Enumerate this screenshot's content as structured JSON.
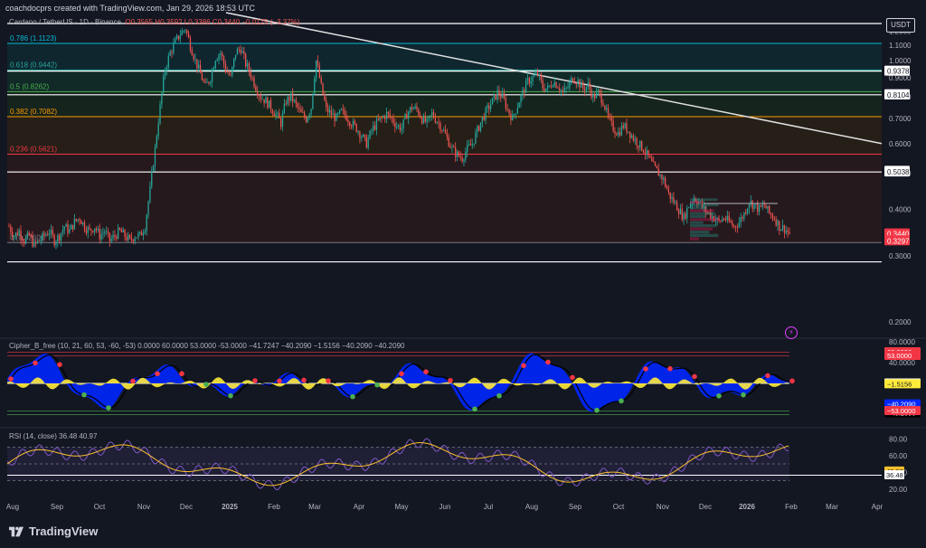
{
  "header": {
    "created_by": "coachdocprs created with TradingView.com, Jan 29, 2026 18:53 UTC"
  },
  "symbol": {
    "name": "Cardano / TetherUS · 1D · Binance",
    "ohlc": "O0.3565 H0.3592 L0.3386 C0.3440 −0.0125 (−3.37%)"
  },
  "currency_button": "USDT",
  "brand": "TradingView",
  "colors": {
    "bg": "#131722",
    "up": "#26a69a",
    "down": "#ef5350",
    "fib_0786": "#00bcd4",
    "fib_0618": "#26a69a",
    "fib_05": "#4caf50",
    "fib_0382": "#ff9800",
    "fib_0236": "#f23645",
    "fib_0": "#787b86",
    "white_line": "#ffffff",
    "cipher_blue": "#0026ff",
    "cipher_yellow": "#ffeb3b",
    "rsi_line": "#7e57c2",
    "rsi_ma": "#fbc02d"
  },
  "chart_data": [
    {
      "type": "candlestick",
      "title": "Cardano / TetherUS · 1D · Binance",
      "log_scale": true,
      "ylim": [
        0.185,
        1.3
      ],
      "y_ticks": [
        1.2,
        1.1,
        1.0,
        0.9,
        0.8,
        0.7,
        0.6,
        0.5,
        0.4,
        0.3,
        0.2
      ],
      "y_tick_labels": [
        "1.2000",
        "1.1000",
        "1.0000",
        "0.9000",
        "0.8000",
        "0.7000",
        "0.6000",
        "0.5000",
        "0.4000",
        "0.3000",
        "0.2000"
      ],
      "x_ticks": [
        "Aug",
        "Sep",
        "Oct",
        "Nov",
        "Dec",
        "2025",
        "Feb",
        "Mar",
        "Apr",
        "May",
        "Jun",
        "Jul",
        "Aug",
        "Sep",
        "Oct",
        "Nov",
        "Dec",
        "2026",
        "Feb",
        "Mar",
        "Apr"
      ],
      "approx_close_path": [
        [
          0.36,
          0.34,
          0.35,
          0.33,
          0.34,
          0.32,
          0.33,
          0.34,
          0.35,
          0.33,
          0.34,
          0.36,
          0.35,
          0.37,
          0.38,
          0.36,
          0.35,
          0.36,
          0.34,
          0.35,
          0.33,
          0.34,
          0.35,
          0.34,
          0.33,
          0.34
        ],
        [
          0.34,
          0.36,
          0.45,
          0.58,
          0.75,
          0.95,
          1.05,
          1.12,
          1.18,
          1.22,
          1.1,
          1.0,
          0.92,
          0.85,
          0.9,
          1.02,
          1.05,
          0.95,
          0.9,
          1.05,
          1.08,
          0.98,
          0.92,
          0.85,
          0.8,
          0.78
        ],
        [
          0.75,
          0.72,
          0.68,
          0.78,
          0.8,
          0.76,
          0.72,
          0.7,
          0.75,
          1.0,
          0.85,
          0.74,
          0.72,
          0.7,
          0.73,
          0.71,
          0.68,
          0.66,
          0.63,
          0.6,
          0.65,
          0.68,
          0.7,
          0.72,
          0.7,
          0.67
        ],
        [
          0.66,
          0.72,
          0.75,
          0.74,
          0.7,
          0.68,
          0.72,
          0.69,
          0.66,
          0.62,
          0.58,
          0.56,
          0.55,
          0.58,
          0.6,
          0.65,
          0.7,
          0.74,
          0.78,
          0.82,
          0.8,
          0.74,
          0.7,
          0.76,
          0.82,
          0.88
        ],
        [
          0.9,
          0.92,
          0.85,
          0.84,
          0.88,
          0.86,
          0.82,
          0.85,
          0.9,
          0.88,
          0.84,
          0.86,
          0.8,
          0.82,
          0.78,
          0.7,
          0.66,
          0.64,
          0.67,
          0.65,
          0.62,
          0.6,
          0.58,
          0.55,
          0.52,
          0.5
        ],
        [
          0.48,
          0.44,
          0.42,
          0.4,
          0.38,
          0.41,
          0.43,
          0.42,
          0.4,
          0.39,
          0.38,
          0.37,
          0.38,
          0.37,
          0.36,
          0.37,
          0.39,
          0.42,
          0.41,
          0.4,
          0.41,
          0.39,
          0.38,
          0.36,
          0.356,
          0.344
        ]
      ],
      "horizontal_levels": [
        {
          "label": "0.786 (1.1123)",
          "price": 1.1123,
          "color": "fib_0786"
        },
        {
          "label": "0.618 (0.9442)",
          "price": 0.9442,
          "color": "fib_0618"
        },
        {
          "label": "0.5 (0.8262)",
          "price": 0.8262,
          "color": "fib_05"
        },
        {
          "label": "0.382 (0.7082)",
          "price": 0.7082,
          "color": "fib_0382"
        },
        {
          "label": "0.236 (0.5621)",
          "price": 0.5621,
          "color": "fib_0236"
        },
        {
          "label": "0 (0.3260)",
          "price": 0.326,
          "color": "fib_0"
        }
      ],
      "white_levels": [
        1.2575,
        0.9378,
        0.8104,
        0.5038,
        0.2896
      ],
      "price_tags": [
        {
          "label": "0.9378",
          "price": 0.9378,
          "bg": "#ffffff",
          "fg": "#131722"
        },
        {
          "label": "0.8109",
          "price": 0.8109,
          "bg": "#ffffff",
          "fg": "#131722"
        },
        {
          "label": "0.8104",
          "price": 0.8104,
          "bg": "#ffffff",
          "fg": "#131722"
        },
        {
          "label": "0.5060",
          "price": 0.506,
          "bg": "#ffffff",
          "fg": "#131722"
        },
        {
          "label": "0.5038",
          "price": 0.5038,
          "bg": "#ffffff",
          "fg": "#131722"
        },
        {
          "label": "0.3440",
          "price": 0.344,
          "bg": "#f23645",
          "fg": "#ffffff"
        },
        {
          "label": "0.3297",
          "price": 0.3297,
          "bg": "#f23645",
          "fg": "#ffffff"
        }
      ],
      "trendline": {
        "from": [
          "Dec",
          1.3
        ],
        "to": [
          "Apr",
          0.6
        ]
      }
    },
    {
      "type": "area",
      "title": "Cipher_B_free (10, 21, 60, 53, -60, -53) 0.0000 60.0000 53.0000 -53.0000 −41.7247 −40.2090 −1.5156 −40.2090 −40.2090",
      "ylim": [
        -80,
        80
      ],
      "y_ticks": [
        80,
        40
      ],
      "y_tick_labels": [
        "80.0000",
        "40.0000"
      ],
      "levels": [
        60,
        53,
        0,
        -53,
        -60
      ],
      "price_tags": [
        {
          "label": "60.0000",
          "value": 60,
          "bg": "#f23645",
          "fg": "#ffffff"
        },
        {
          "label": "53.0000",
          "value": 53,
          "bg": "#f23645",
          "fg": "#ffffff"
        },
        {
          "label": "0.0000",
          "value": 0,
          "bg": "#ffffff",
          "fg": "#131722"
        },
        {
          "label": "−1.5156",
          "value": -1.5156,
          "bg": "#ffeb3b",
          "fg": "#131722"
        },
        {
          "label": "−40.2090",
          "value": -40.209,
          "bg": "#0026ff",
          "fg": "#ffffff"
        },
        {
          "label": "−40.2090",
          "value": -40.209,
          "bg": "#000000",
          "fg": "#ffffff"
        },
        {
          "label": "−53.0000",
          "value": -53,
          "bg": "#f23645",
          "fg": "#ffffff"
        }
      ]
    },
    {
      "type": "line",
      "title": "RSI (14, close) 36.48 40.97",
      "ylim": [
        10,
        90
      ],
      "y_ticks": [
        80,
        60,
        40,
        20
      ],
      "y_tick_labels": [
        "80.00",
        "60.00",
        "40.00",
        "20.00"
      ],
      "bands": [
        70,
        50,
        30
      ],
      "price_tags": [
        {
          "label": "40.97",
          "value": 40.97,
          "bg": "#fbc02d",
          "fg": "#131722"
        },
        {
          "label": "36.48",
          "value": 36.48,
          "bg": "#ffffff",
          "fg": "#131722"
        }
      ]
    }
  ]
}
